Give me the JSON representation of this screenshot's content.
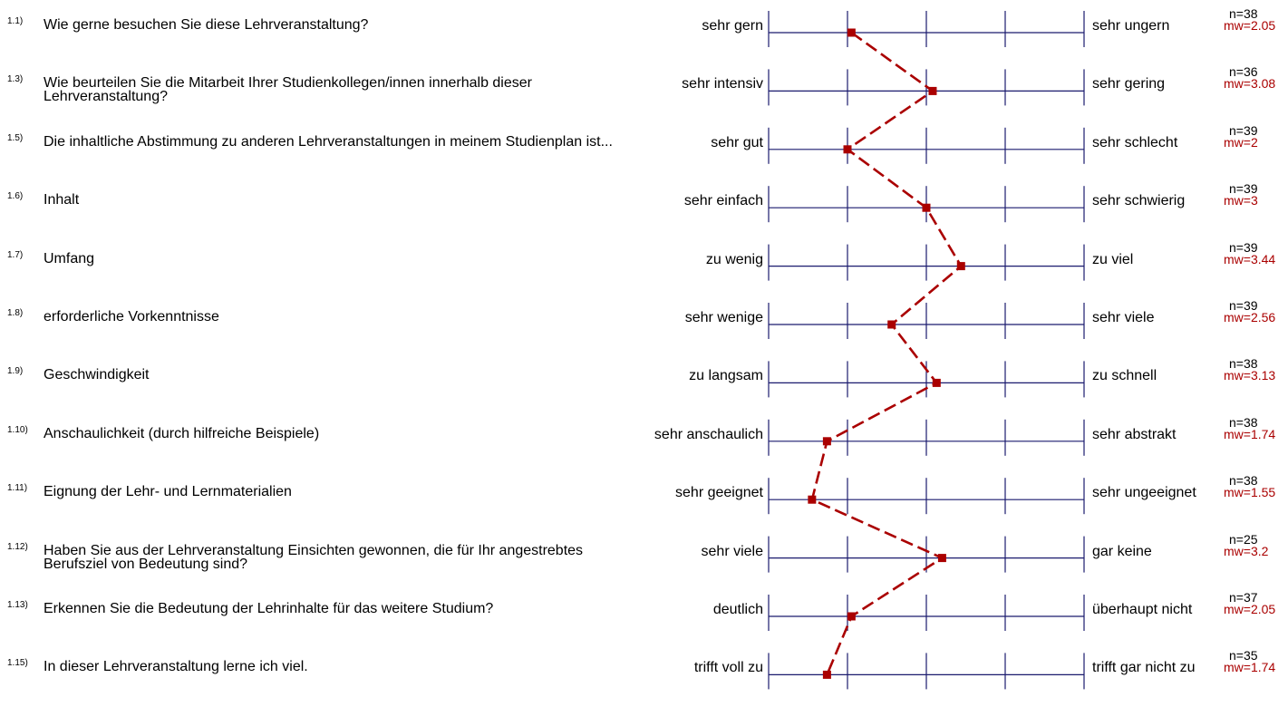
{
  "chart_data": {
    "type": "line",
    "xlim": [
      1,
      5
    ],
    "series_color": "#aa0000",
    "grid_color": "#1a1a6e",
    "items": [
      {
        "num": "1.1)",
        "question": "Wie gerne besuchen Sie diese Lehrveranstaltung?",
        "left": "sehr gern",
        "right": "sehr ungern",
        "n": "n=38",
        "mw_label": "mw=2.05",
        "mw": 2.05
      },
      {
        "num": "1.3)",
        "question": "Wie beurteilen Sie die Mitarbeit Ihrer Studienkollegen/innen innerhalb dieser Lehrveranstaltung?",
        "left": "sehr intensiv",
        "right": "sehr gering",
        "n": "n=36",
        "mw_label": "mw=3.08",
        "mw": 3.08
      },
      {
        "num": "1.5)",
        "question": "Die inhaltliche Abstimmung zu anderen Lehrveranstaltungen in meinem Studienplan ist...",
        "left": "sehr gut",
        "right": "sehr schlecht",
        "n": "n=39",
        "mw_label": "mw=2",
        "mw": 2
      },
      {
        "num": "1.6)",
        "question": "Inhalt",
        "left": "sehr einfach",
        "right": "sehr schwierig",
        "n": "n=39",
        "mw_label": "mw=3",
        "mw": 3
      },
      {
        "num": "1.7)",
        "question": "Umfang",
        "left": "zu wenig",
        "right": "zu viel",
        "n": "n=39",
        "mw_label": "mw=3.44",
        "mw": 3.44
      },
      {
        "num": "1.8)",
        "question": "erforderliche Vorkenntnisse",
        "left": "sehr wenige",
        "right": "sehr viele",
        "n": "n=39",
        "mw_label": "mw=2.56",
        "mw": 2.56
      },
      {
        "num": "1.9)",
        "question": "Geschwindigkeit",
        "left": "zu langsam",
        "right": "zu schnell",
        "n": "n=38",
        "mw_label": "mw=3.13",
        "mw": 3.13
      },
      {
        "num": "1.10)",
        "question": "Anschaulichkeit (durch hilfreiche Beispiele)",
        "left": "sehr anschaulich",
        "right": "sehr abstrakt",
        "n": "n=38",
        "mw_label": "mw=1.74",
        "mw": 1.74
      },
      {
        "num": "1.11)",
        "question": "Eignung der Lehr- und Lernmaterialien",
        "left": "sehr geeignet",
        "right": "sehr ungeeignet",
        "n": "n=38",
        "mw_label": "mw=1.55",
        "mw": 1.55
      },
      {
        "num": "1.12)",
        "question": "Haben Sie aus der Lehrveranstaltung Einsichten gewonnen, die für  Ihr angestrebtes Berufsziel von Bedeutung sind?",
        "left": "sehr viele",
        "right": "gar keine",
        "n": "n=25",
        "mw_label": "mw=3.2",
        "mw": 3.2
      },
      {
        "num": "1.13)",
        "question": "Erkennen Sie die Bedeutung der Lehrinhalte für das weitere Studium?",
        "left": "deutlich",
        "right": "überhaupt nicht",
        "n": "n=37",
        "mw_label": "mw=2.05",
        "mw": 2.05
      },
      {
        "num": "1.15)",
        "question": "In dieser Lehrveranstaltung lerne ich viel.",
        "left": "trifft voll zu",
        "right": "trifft gar nicht zu",
        "n": "n=35",
        "mw_label": "mw=1.74",
        "mw": 1.74
      }
    ]
  }
}
